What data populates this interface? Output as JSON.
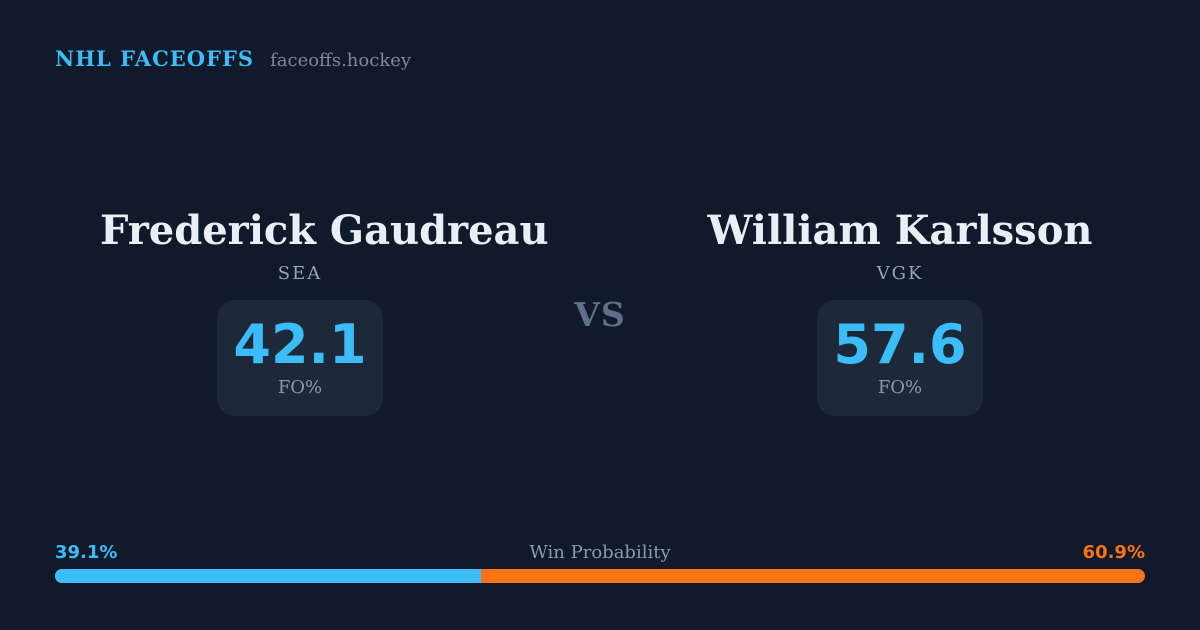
{
  "header": {
    "brand": "NHL FACEOFFS",
    "site": "faceoffs.hockey"
  },
  "matchup": {
    "vs_label": "VS",
    "players": [
      {
        "name": "Frederick Gaudreau",
        "team": "SEA",
        "stat_value": "42.1",
        "stat_label": "FO%"
      },
      {
        "name": "William Karlsson",
        "team": "VGK",
        "stat_value": "57.6",
        "stat_label": "FO%"
      }
    ]
  },
  "win_probability": {
    "title": "Win Probability",
    "left_pct_label": "39.1%",
    "right_pct_label": "60.9%",
    "left_value": 39.1,
    "right_value": 60.9
  },
  "colors": {
    "background": "#111a2b",
    "card": "#1d2939",
    "accent_blue": "#3abdf8",
    "accent_orange": "#f97316",
    "text_primary": "#e9eff6",
    "text_muted": "#8b99ad"
  },
  "chart_data": {
    "type": "bar",
    "title": "Win Probability",
    "categories": [
      "Frederick Gaudreau (SEA)",
      "William Karlsson (VGK)"
    ],
    "series": [
      {
        "name": "FO%",
        "values": [
          42.1,
          57.6
        ]
      },
      {
        "name": "Win Probability %",
        "values": [
          39.1,
          60.9
        ]
      }
    ],
    "orientation": "horizontal-stacked",
    "xlim": [
      0,
      100
    ],
    "legend": false,
    "colors": [
      "#3abdf8",
      "#f97316"
    ]
  }
}
